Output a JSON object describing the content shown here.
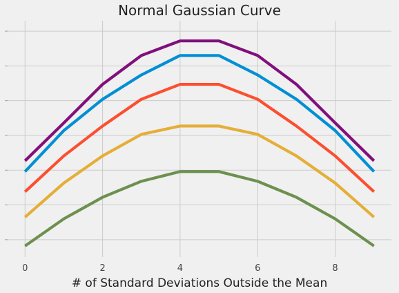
{
  "chart_data": {
    "type": "line",
    "title": "Normal Gaussian Curve",
    "xlabel": "# of Standard Deviations Outside the Mean",
    "ylabel": "",
    "x": [
      0,
      1,
      2,
      3,
      4,
      5,
      6,
      7,
      8,
      9
    ],
    "xlim": [
      -0.45,
      9.45
    ],
    "xticks": [
      0,
      2,
      4,
      6,
      8
    ],
    "xtick_labels": [
      "0",
      "2",
      "4",
      "6",
      "8"
    ],
    "ylim": [
      -0.5,
      6.3
    ],
    "yticks": [
      0,
      1,
      2,
      3,
      4,
      5,
      6
    ],
    "ytick_labels": [
      "",
      "",
      "",
      "",
      "",
      "",
      ""
    ],
    "grid": true,
    "legend": "none",
    "series": [
      {
        "color": "#6d904f",
        "values": [
          -0.18,
          0.6,
          1.22,
          1.68,
          1.96,
          1.96,
          1.68,
          1.22,
          0.6,
          -0.18
        ]
      },
      {
        "color": "#e5ae38",
        "values": [
          0.65,
          1.63,
          2.41,
          3.03,
          3.27,
          3.27,
          3.03,
          2.41,
          1.63,
          0.65
        ]
      },
      {
        "color": "#fc4f30",
        "values": [
          1.38,
          2.41,
          3.27,
          4.04,
          4.47,
          4.47,
          4.04,
          3.27,
          2.41,
          1.38
        ]
      },
      {
        "color": "#008fd5",
        "values": [
          1.96,
          3.14,
          4.04,
          4.74,
          5.3,
          5.3,
          4.74,
          4.04,
          3.14,
          1.96
        ]
      },
      {
        "color": "#810f7c",
        "values": [
          2.27,
          3.36,
          4.47,
          5.3,
          5.72,
          5.72,
          5.3,
          4.47,
          3.36,
          2.27
        ]
      }
    ]
  }
}
